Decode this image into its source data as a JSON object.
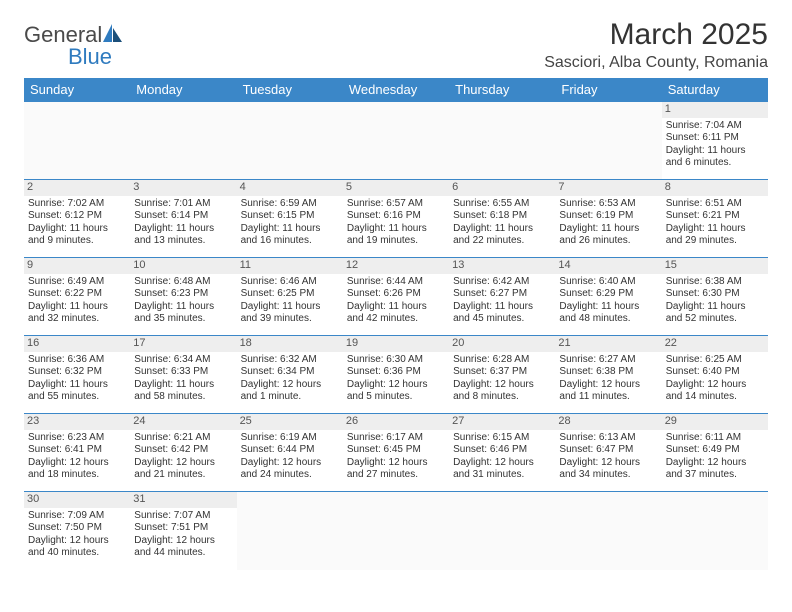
{
  "logo": {
    "text1": "General",
    "text2": "Blue"
  },
  "title": "March 2025",
  "location": "Sasciori, Alba County, Romania",
  "colors": {
    "header_bg": "#3b87c8",
    "header_fg": "#ffffff",
    "daynum_bg": "#eeeeee",
    "border": "#3b87c8"
  },
  "day_headers": [
    "Sunday",
    "Monday",
    "Tuesday",
    "Wednesday",
    "Thursday",
    "Friday",
    "Saturday"
  ],
  "weeks": [
    [
      null,
      null,
      null,
      null,
      null,
      null,
      {
        "n": "1",
        "sr": "Sunrise: 7:04 AM",
        "ss": "Sunset: 6:11 PM",
        "d1": "Daylight: 11 hours",
        "d2": "and 6 minutes."
      }
    ],
    [
      {
        "n": "2",
        "sr": "Sunrise: 7:02 AM",
        "ss": "Sunset: 6:12 PM",
        "d1": "Daylight: 11 hours",
        "d2": "and 9 minutes."
      },
      {
        "n": "3",
        "sr": "Sunrise: 7:01 AM",
        "ss": "Sunset: 6:14 PM",
        "d1": "Daylight: 11 hours",
        "d2": "and 13 minutes."
      },
      {
        "n": "4",
        "sr": "Sunrise: 6:59 AM",
        "ss": "Sunset: 6:15 PM",
        "d1": "Daylight: 11 hours",
        "d2": "and 16 minutes."
      },
      {
        "n": "5",
        "sr": "Sunrise: 6:57 AM",
        "ss": "Sunset: 6:16 PM",
        "d1": "Daylight: 11 hours",
        "d2": "and 19 minutes."
      },
      {
        "n": "6",
        "sr": "Sunrise: 6:55 AM",
        "ss": "Sunset: 6:18 PM",
        "d1": "Daylight: 11 hours",
        "d2": "and 22 minutes."
      },
      {
        "n": "7",
        "sr": "Sunrise: 6:53 AM",
        "ss": "Sunset: 6:19 PM",
        "d1": "Daylight: 11 hours",
        "d2": "and 26 minutes."
      },
      {
        "n": "8",
        "sr": "Sunrise: 6:51 AM",
        "ss": "Sunset: 6:21 PM",
        "d1": "Daylight: 11 hours",
        "d2": "and 29 minutes."
      }
    ],
    [
      {
        "n": "9",
        "sr": "Sunrise: 6:49 AM",
        "ss": "Sunset: 6:22 PM",
        "d1": "Daylight: 11 hours",
        "d2": "and 32 minutes."
      },
      {
        "n": "10",
        "sr": "Sunrise: 6:48 AM",
        "ss": "Sunset: 6:23 PM",
        "d1": "Daylight: 11 hours",
        "d2": "and 35 minutes."
      },
      {
        "n": "11",
        "sr": "Sunrise: 6:46 AM",
        "ss": "Sunset: 6:25 PM",
        "d1": "Daylight: 11 hours",
        "d2": "and 39 minutes."
      },
      {
        "n": "12",
        "sr": "Sunrise: 6:44 AM",
        "ss": "Sunset: 6:26 PM",
        "d1": "Daylight: 11 hours",
        "d2": "and 42 minutes."
      },
      {
        "n": "13",
        "sr": "Sunrise: 6:42 AM",
        "ss": "Sunset: 6:27 PM",
        "d1": "Daylight: 11 hours",
        "d2": "and 45 minutes."
      },
      {
        "n": "14",
        "sr": "Sunrise: 6:40 AM",
        "ss": "Sunset: 6:29 PM",
        "d1": "Daylight: 11 hours",
        "d2": "and 48 minutes."
      },
      {
        "n": "15",
        "sr": "Sunrise: 6:38 AM",
        "ss": "Sunset: 6:30 PM",
        "d1": "Daylight: 11 hours",
        "d2": "and 52 minutes."
      }
    ],
    [
      {
        "n": "16",
        "sr": "Sunrise: 6:36 AM",
        "ss": "Sunset: 6:32 PM",
        "d1": "Daylight: 11 hours",
        "d2": "and 55 minutes."
      },
      {
        "n": "17",
        "sr": "Sunrise: 6:34 AM",
        "ss": "Sunset: 6:33 PM",
        "d1": "Daylight: 11 hours",
        "d2": "and 58 minutes."
      },
      {
        "n": "18",
        "sr": "Sunrise: 6:32 AM",
        "ss": "Sunset: 6:34 PM",
        "d1": "Daylight: 12 hours",
        "d2": "and 1 minute."
      },
      {
        "n": "19",
        "sr": "Sunrise: 6:30 AM",
        "ss": "Sunset: 6:36 PM",
        "d1": "Daylight: 12 hours",
        "d2": "and 5 minutes."
      },
      {
        "n": "20",
        "sr": "Sunrise: 6:28 AM",
        "ss": "Sunset: 6:37 PM",
        "d1": "Daylight: 12 hours",
        "d2": "and 8 minutes."
      },
      {
        "n": "21",
        "sr": "Sunrise: 6:27 AM",
        "ss": "Sunset: 6:38 PM",
        "d1": "Daylight: 12 hours",
        "d2": "and 11 minutes."
      },
      {
        "n": "22",
        "sr": "Sunrise: 6:25 AM",
        "ss": "Sunset: 6:40 PM",
        "d1": "Daylight: 12 hours",
        "d2": "and 14 minutes."
      }
    ],
    [
      {
        "n": "23",
        "sr": "Sunrise: 6:23 AM",
        "ss": "Sunset: 6:41 PM",
        "d1": "Daylight: 12 hours",
        "d2": "and 18 minutes."
      },
      {
        "n": "24",
        "sr": "Sunrise: 6:21 AM",
        "ss": "Sunset: 6:42 PM",
        "d1": "Daylight: 12 hours",
        "d2": "and 21 minutes."
      },
      {
        "n": "25",
        "sr": "Sunrise: 6:19 AM",
        "ss": "Sunset: 6:44 PM",
        "d1": "Daylight: 12 hours",
        "d2": "and 24 minutes."
      },
      {
        "n": "26",
        "sr": "Sunrise: 6:17 AM",
        "ss": "Sunset: 6:45 PM",
        "d1": "Daylight: 12 hours",
        "d2": "and 27 minutes."
      },
      {
        "n": "27",
        "sr": "Sunrise: 6:15 AM",
        "ss": "Sunset: 6:46 PM",
        "d1": "Daylight: 12 hours",
        "d2": "and 31 minutes."
      },
      {
        "n": "28",
        "sr": "Sunrise: 6:13 AM",
        "ss": "Sunset: 6:47 PM",
        "d1": "Daylight: 12 hours",
        "d2": "and 34 minutes."
      },
      {
        "n": "29",
        "sr": "Sunrise: 6:11 AM",
        "ss": "Sunset: 6:49 PM",
        "d1": "Daylight: 12 hours",
        "d2": "and 37 minutes."
      }
    ],
    [
      {
        "n": "30",
        "sr": "Sunrise: 7:09 AM",
        "ss": "Sunset: 7:50 PM",
        "d1": "Daylight: 12 hours",
        "d2": "and 40 minutes."
      },
      {
        "n": "31",
        "sr": "Sunrise: 7:07 AM",
        "ss": "Sunset: 7:51 PM",
        "d1": "Daylight: 12 hours",
        "d2": "and 44 minutes."
      },
      null,
      null,
      null,
      null,
      null
    ]
  ]
}
